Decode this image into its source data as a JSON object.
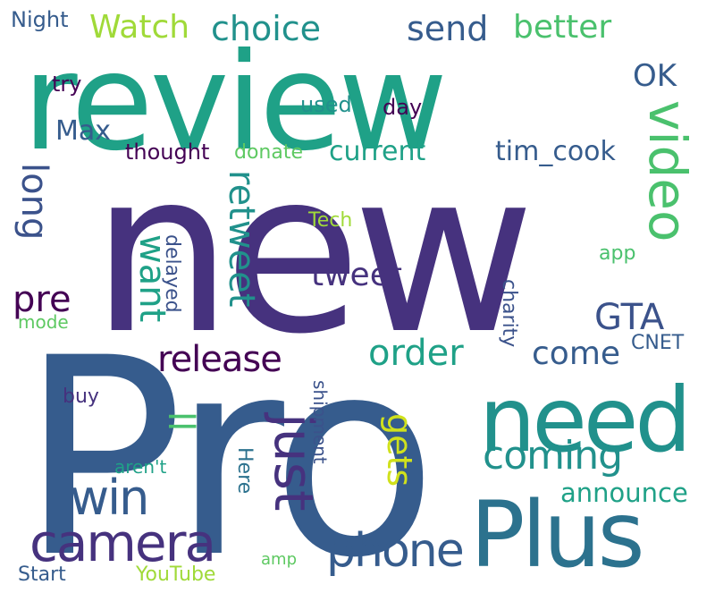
{
  "word_cloud": {
    "words": {
      "pro": "Pro",
      "new": "new",
      "review": "review",
      "plus": "Plus",
      "need": "need",
      "camera": "camera",
      "phone": "phone",
      "just": "just",
      "video": "video",
      "win": "win",
      "coming": "coming",
      "release": "release",
      "order": "order",
      "retweet": "retweet",
      "gta": "GTA",
      "come": "come",
      "choice": "choice",
      "watch": "Watch",
      "send": "send",
      "better": "better",
      "long": "long",
      "pre": "pre",
      "want": "want",
      "tweet": "tweet",
      "ok": "OK",
      "gets": "gets",
      "ll": "ll",
      "max": "Max",
      "current": "current",
      "tim_cook": "tim_cook",
      "announce": "announce",
      "thought": "thought",
      "donate": "donate",
      "night": "Night",
      "try": "try",
      "used": "used",
      "day": "day",
      "tech": "Tech",
      "app": "app",
      "mode": "mode",
      "delayed": "delayed",
      "charity": "charity",
      "cnet": "CNET",
      "buy": "buy",
      "shipment": "shipment",
      "arent": "aren't",
      "here": "Here",
      "start": "Start",
      "youtube": "YouTube",
      "amp": "amp"
    }
  }
}
